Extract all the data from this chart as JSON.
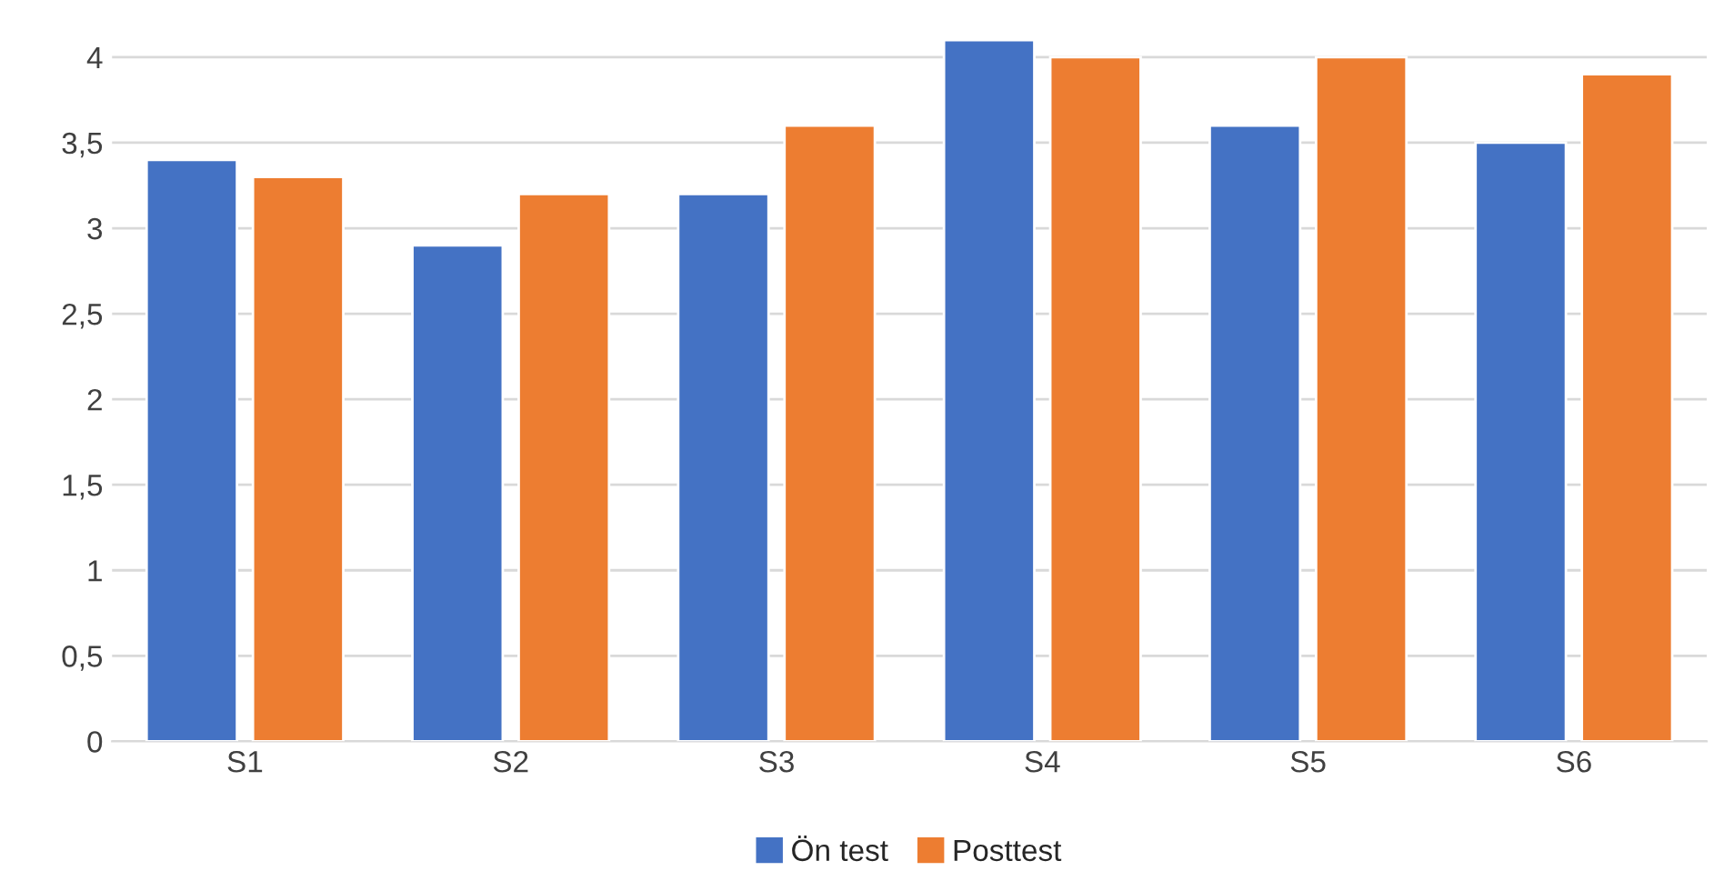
{
  "chart_data": {
    "type": "bar",
    "categories": [
      "S1",
      "S2",
      "S3",
      "S4",
      "S5",
      "S6"
    ],
    "series": [
      {
        "name": "Ön test",
        "color": "#4472c4",
        "values": [
          3.4,
          2.9,
          3.2,
          4.1,
          3.6,
          3.5
        ]
      },
      {
        "name": "Posttest",
        "color": "#ed7d31",
        "values": [
          3.3,
          3.2,
          3.6,
          4.0,
          4.0,
          3.9
        ]
      }
    ],
    "ylim": [
      0,
      4.1
    ],
    "yticks": [
      0,
      {
        "value": 0.5,
        "label": "0,5"
      },
      1,
      {
        "value": 1.5,
        "label": "1,5"
      },
      2,
      {
        "value": 2.5,
        "label": "2,5"
      },
      3,
      {
        "value": 3.5,
        "label": "3,5"
      },
      4
    ],
    "grid": "y",
    "legend": "bottom"
  }
}
